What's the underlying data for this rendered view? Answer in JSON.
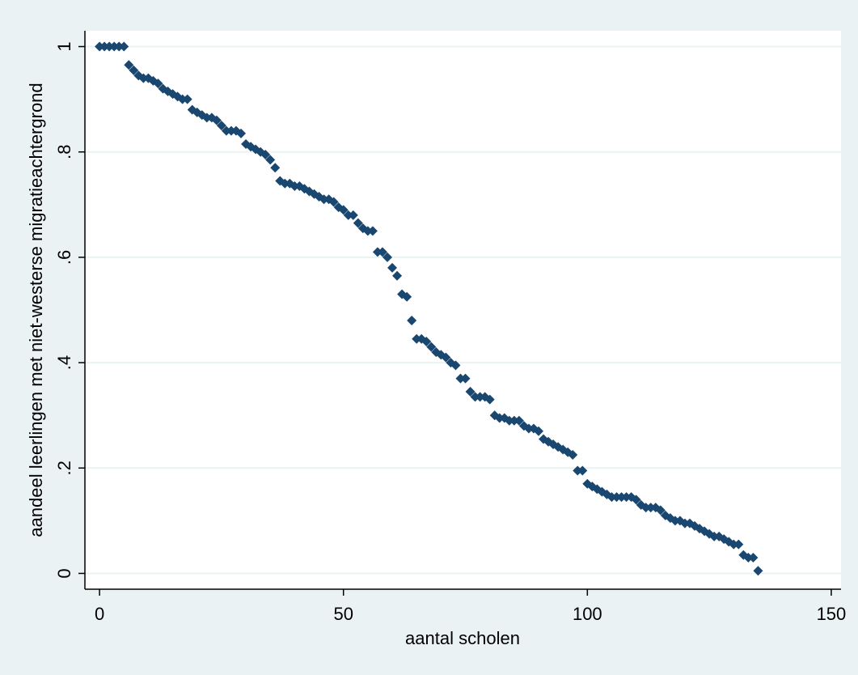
{
  "chart_data": {
    "type": "scatter",
    "x_label": "aantal scholen",
    "y_label": "aandeel leerlingen met niet-westerse migratieachtergrond",
    "x": [
      0,
      1,
      2,
      3,
      4,
      5,
      6,
      7,
      8,
      9,
      10,
      11,
      12,
      13,
      14,
      15,
      16,
      17,
      18,
      19,
      20,
      21,
      22,
      23,
      24,
      25,
      26,
      27,
      28,
      29,
      30,
      31,
      32,
      33,
      34,
      35,
      36,
      37,
      38,
      39,
      40,
      41,
      42,
      43,
      44,
      45,
      46,
      47,
      48,
      49,
      50,
      51,
      52,
      53,
      54,
      55,
      56,
      57,
      58,
      59,
      60,
      61,
      62,
      63,
      64,
      65,
      66,
      67,
      68,
      69,
      70,
      71,
      72,
      73,
      74,
      75,
      76,
      77,
      78,
      79,
      80,
      81,
      82,
      83,
      84,
      85,
      86,
      87,
      88,
      89,
      90,
      91,
      92,
      93,
      94,
      95,
      96,
      97,
      98,
      99,
      100,
      101,
      102,
      103,
      104,
      105,
      106,
      107,
      108,
      109,
      110,
      111,
      112,
      113,
      114,
      115,
      116,
      117,
      118,
      119,
      120,
      121,
      122,
      123,
      124,
      125,
      126,
      127,
      128,
      129,
      130,
      131,
      132,
      133,
      134,
      135
    ],
    "values": [
      1,
      1,
      1,
      1,
      1,
      1,
      0.965,
      0.955,
      0.945,
      0.94,
      0.94,
      0.935,
      0.93,
      0.92,
      0.915,
      0.91,
      0.905,
      0.9,
      0.9,
      0.88,
      0.875,
      0.87,
      0.865,
      0.865,
      0.86,
      0.85,
      0.84,
      0.84,
      0.84,
      0.835,
      0.815,
      0.81,
      0.805,
      0.8,
      0.795,
      0.785,
      0.77,
      0.745,
      0.74,
      0.74,
      0.735,
      0.735,
      0.73,
      0.725,
      0.72,
      0.715,
      0.71,
      0.71,
      0.705,
      0.695,
      0.69,
      0.68,
      0.68,
      0.665,
      0.655,
      0.65,
      0.65,
      0.61,
      0.61,
      0.6,
      0.58,
      0.565,
      0.53,
      0.525,
      0.48,
      0.445,
      0.445,
      0.44,
      0.43,
      0.42,
      0.415,
      0.41,
      0.4,
      0.395,
      0.37,
      0.37,
      0.345,
      0.335,
      0.335,
      0.335,
      0.33,
      0.3,
      0.295,
      0.295,
      0.29,
      0.29,
      0.29,
      0.28,
      0.275,
      0.275,
      0.27,
      0.255,
      0.25,
      0.245,
      0.24,
      0.235,
      0.23,
      0.225,
      0.195,
      0.195,
      0.17,
      0.165,
      0.16,
      0.155,
      0.15,
      0.145,
      0.145,
      0.145,
      0.145,
      0.145,
      0.14,
      0.13,
      0.125,
      0.125,
      0.125,
      0.12,
      0.11,
      0.105,
      0.1,
      0.1,
      0.095,
      0.095,
      0.09,
      0.085,
      0.08,
      0.075,
      0.07,
      0.07,
      0.065,
      0.06,
      0.055,
      0.055,
      0.035,
      0.03,
      0.03,
      0.005
    ],
    "color": "#1a476f",
    "xlim": [
      -3,
      152
    ],
    "ylim": [
      -0.03,
      1.03
    ],
    "xticks": [
      0,
      50,
      100,
      150
    ],
    "yticks": [
      0,
      {
        "value": 0.2,
        "label": ".2"
      },
      {
        "value": 0.4,
        "label": ".4"
      },
      {
        "value": 0.6,
        "label": ".6"
      },
      {
        "value": 0.8,
        "label": ".8"
      },
      1
    ],
    "grid": true
  }
}
